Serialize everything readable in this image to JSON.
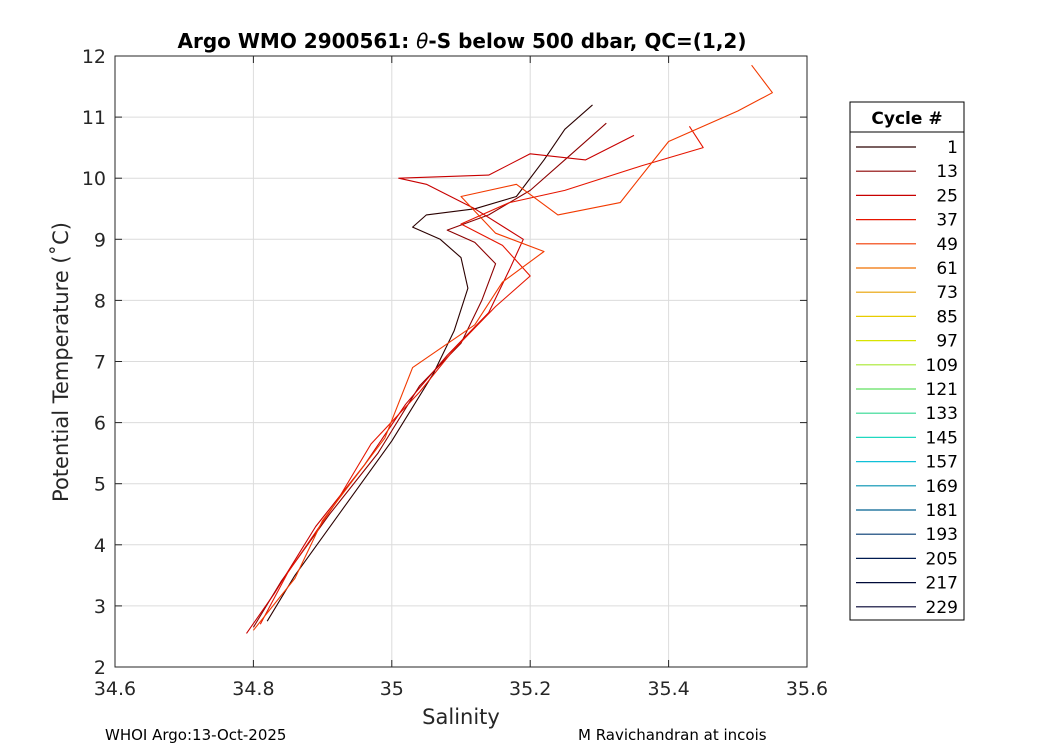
{
  "chart_data": {
    "type": "line",
    "title_prefix": "Argo WMO 2900561: ",
    "title_theta": "θ",
    "title_suffix": "-S below 500 dbar,  QC=(1,2)",
    "xlabel": "Salinity",
    "ylabel": "Potential Temperature (˚C)",
    "xlim": [
      34.6,
      35.6
    ],
    "ylim": [
      2,
      12
    ],
    "xticks": [
      "34.6",
      "34.8",
      "35",
      "35.2",
      "35.4",
      "35.6"
    ],
    "yticks": [
      "2",
      "3",
      "4",
      "5",
      "6",
      "7",
      "8",
      "9",
      "10",
      "11",
      "12"
    ],
    "grid": true,
    "legend": {
      "title": "Cycle #",
      "placement": "outside-right",
      "entries": [
        {
          "label": "1",
          "color": "#2a0000"
        },
        {
          "label": "13",
          "color": "#8c0000"
        },
        {
          "label": "25",
          "color": "#c80000"
        },
        {
          "label": "37",
          "color": "#e61500"
        },
        {
          "label": "49",
          "color": "#f23a00"
        },
        {
          "label": "61",
          "color": "#f07000"
        },
        {
          "label": "73",
          "color": "#e8a000"
        },
        {
          "label": "85",
          "color": "#e8cc00"
        },
        {
          "label": "97",
          "color": "#d8e400"
        },
        {
          "label": "109",
          "color": "#a8e830"
        },
        {
          "label": "121",
          "color": "#60e060"
        },
        {
          "label": "133",
          "color": "#30d890"
        },
        {
          "label": "145",
          "color": "#20d8c0"
        },
        {
          "label": "157",
          "color": "#10c0d8"
        },
        {
          "label": "169",
          "color": "#0090b0"
        },
        {
          "label": "181",
          "color": "#006090"
        },
        {
          "label": "193",
          "color": "#003870"
        },
        {
          "label": "205",
          "color": "#001a50"
        },
        {
          "label": "217",
          "color": "#000a38"
        },
        {
          "label": "229",
          "color": "#000030"
        }
      ]
    },
    "series": [
      {
        "name": "1",
        "color": "#2a0000",
        "points": [
          [
            34.82,
            2.75
          ],
          [
            34.86,
            3.5
          ],
          [
            34.93,
            4.6
          ],
          [
            35.0,
            5.7
          ],
          [
            35.06,
            6.8
          ],
          [
            35.09,
            7.5
          ],
          [
            35.11,
            8.2
          ],
          [
            35.1,
            8.7
          ],
          [
            35.07,
            9.0
          ],
          [
            35.03,
            9.2
          ],
          [
            35.05,
            9.4
          ],
          [
            35.12,
            9.5
          ],
          [
            35.18,
            9.7
          ],
          [
            35.22,
            10.3
          ],
          [
            35.25,
            10.8
          ],
          [
            35.29,
            11.2
          ]
        ]
      },
      {
        "name": "13",
        "color": "#8c0000",
        "points": [
          [
            34.8,
            2.65
          ],
          [
            34.84,
            3.4
          ],
          [
            34.91,
            4.5
          ],
          [
            34.98,
            5.5
          ],
          [
            35.04,
            6.6
          ],
          [
            35.1,
            7.3
          ],
          [
            35.13,
            8.0
          ],
          [
            35.15,
            8.6
          ],
          [
            35.12,
            8.95
          ],
          [
            35.08,
            9.15
          ],
          [
            35.14,
            9.4
          ],
          [
            35.2,
            9.8
          ],
          [
            35.26,
            10.4
          ],
          [
            35.31,
            10.9
          ]
        ]
      },
      {
        "name": "25",
        "color": "#c80000",
        "points": [
          [
            34.79,
            2.55
          ],
          [
            34.83,
            3.2
          ],
          [
            34.89,
            4.3
          ],
          [
            34.96,
            5.3
          ],
          [
            35.02,
            6.3
          ],
          [
            35.08,
            7.1
          ],
          [
            35.14,
            7.8
          ],
          [
            35.17,
            8.5
          ],
          [
            35.19,
            9.0
          ],
          [
            35.12,
            9.5
          ],
          [
            35.05,
            9.9
          ],
          [
            35.01,
            10.0
          ],
          [
            35.14,
            10.05
          ],
          [
            35.2,
            10.4
          ],
          [
            35.28,
            10.3
          ],
          [
            35.35,
            10.7
          ]
        ]
      },
      {
        "name": "37",
        "color": "#e61500",
        "points": [
          [
            34.81,
            2.7
          ],
          [
            34.85,
            3.55
          ],
          [
            34.92,
            4.7
          ],
          [
            34.97,
            5.65
          ],
          [
            35.04,
            6.5
          ],
          [
            35.09,
            7.2
          ],
          [
            35.15,
            7.9
          ],
          [
            35.2,
            8.4
          ],
          [
            35.16,
            8.9
          ],
          [
            35.1,
            9.25
          ],
          [
            35.17,
            9.6
          ],
          [
            35.25,
            9.8
          ],
          [
            35.36,
            10.2
          ],
          [
            35.45,
            10.5
          ],
          [
            35.43,
            10.85
          ]
        ]
      },
      {
        "name": "49",
        "color": "#f23a00",
        "points": [
          [
            34.8,
            2.6
          ],
          [
            34.86,
            3.45
          ],
          [
            34.9,
            4.4
          ],
          [
            34.99,
            5.75
          ],
          [
            35.03,
            6.9
          ],
          [
            35.12,
            7.6
          ],
          [
            35.16,
            8.3
          ],
          [
            35.22,
            8.8
          ],
          [
            35.15,
            9.1
          ],
          [
            35.1,
            9.7
          ],
          [
            35.18,
            9.9
          ],
          [
            35.24,
            9.4
          ],
          [
            35.33,
            9.6
          ],
          [
            35.4,
            10.6
          ],
          [
            35.5,
            11.1
          ],
          [
            35.55,
            11.4
          ],
          [
            35.52,
            11.85
          ]
        ]
      }
    ],
    "footer_left": "WHOI Argo:13-Oct-2025",
    "footer_right": "M Ravichandran at incois"
  }
}
